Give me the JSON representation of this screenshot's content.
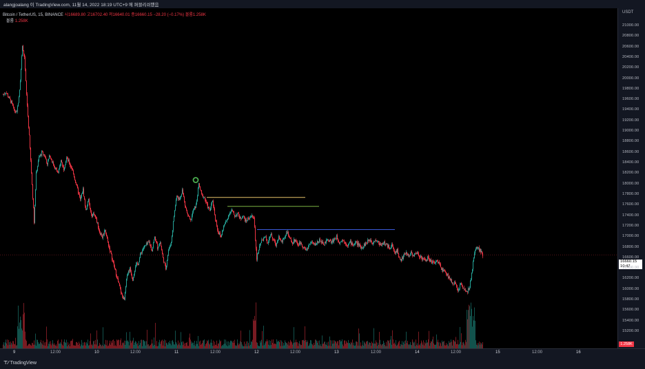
{
  "header": {
    "caption": "alangjoalang 이 TradingView.com, 11월 14, 2022 18:19 UTC+9 에 퍼블리쉬했음"
  },
  "legend": {
    "symbol": "Bitcoin / TetherUS, 15, BINANCE",
    "ohlc": "시16689.80  고16702.40  저16640.01  종16660.15  −28.20 (−0.17%)  볼륨1.258K",
    "volume_label": "볼륨",
    "volume_value": "1.258K"
  },
  "price_axis": {
    "unit": "USDT",
    "labels": [
      "21000.00",
      "20800.00",
      "20600.00",
      "20400.00",
      "20200.00",
      "20000.00",
      "19800.00",
      "19600.00",
      "19400.00",
      "19200.00",
      "19000.00",
      "18800.00",
      "18600.00",
      "18400.00",
      "18200.00",
      "18000.00",
      "17800.00",
      "17600.00",
      "17400.00",
      "17200.00",
      "17000.00",
      "16800.00",
      "16600.00",
      "16400.00",
      "16200.00",
      "16000.00",
      "15800.00",
      "15600.00",
      "15400.00",
      "15200.00"
    ],
    "current_price": "16660.15",
    "countdown": "10:47",
    "volume_badge": "1.258K"
  },
  "time_axis": {
    "labels": [
      "9",
      "12:00",
      "10",
      "12:00",
      "11",
      "12:00",
      "12",
      "12:00",
      "13",
      "12:00",
      "14",
      "12:00",
      "15",
      "12:00",
      "16"
    ]
  },
  "footer": {
    "brand": "TradingView"
  },
  "colors": {
    "up": "#26a69a",
    "down": "#f23645",
    "line_yellow": "#e8c36b",
    "line_green": "#7cb342",
    "line_blue": "#3b5bdb",
    "marker_green": "#4caf50"
  },
  "chart_data": {
    "type": "candlestick",
    "symbol": "BTC/USDT",
    "interval": "15",
    "x_range": [
      "9",
      "16"
    ],
    "ylim": [
      15200,
      21100
    ],
    "series": [
      {
        "values": [
          [
            0,
            19700
          ],
          [
            4,
            19750
          ],
          [
            8,
            19650
          ],
          [
            12,
            19550
          ],
          [
            16,
            19400
          ],
          [
            20,
            19350
          ],
          [
            24,
            19800
          ],
          [
            28,
            20600
          ],
          [
            31,
            20400
          ],
          [
            34,
            19700
          ],
          [
            38,
            18900
          ],
          [
            42,
            18000
          ],
          [
            45,
            17300
          ],
          [
            48,
            18200
          ],
          [
            52,
            18500
          ],
          [
            56,
            18600
          ],
          [
            60,
            18550
          ],
          [
            64,
            18400
          ],
          [
            68,
            18550
          ],
          [
            72,
            18400
          ],
          [
            76,
            18300
          ],
          [
            80,
            18200
          ],
          [
            84,
            18450
          ],
          [
            88,
            18300
          ],
          [
            92,
            18500
          ],
          [
            96,
            18400
          ],
          [
            100,
            18300
          ],
          [
            104,
            18100
          ],
          [
            108,
            17900
          ],
          [
            112,
            17700
          ],
          [
            116,
            17900
          ],
          [
            120,
            17500
          ],
          [
            124,
            17700
          ],
          [
            128,
            17400
          ],
          [
            132,
            17450
          ],
          [
            136,
            17300
          ],
          [
            140,
            17100
          ],
          [
            144,
            17000
          ],
          [
            148,
            17150
          ],
          [
            152,
            16900
          ],
          [
            156,
            16700
          ],
          [
            160,
            16500
          ],
          [
            164,
            16300
          ],
          [
            168,
            16100
          ],
          [
            172,
            15900
          ],
          [
            176,
            15800
          ],
          [
            180,
            16300
          ],
          [
            184,
            16400
          ],
          [
            188,
            16200
          ],
          [
            192,
            16450
          ],
          [
            196,
            16500
          ],
          [
            200,
            16700
          ],
          [
            204,
            16800
          ],
          [
            208,
            16850
          ],
          [
            212,
            16900
          ],
          [
            216,
            16750
          ],
          [
            220,
            17000
          ],
          [
            224,
            16800
          ],
          [
            228,
            16900
          ],
          [
            232,
            16600
          ],
          [
            236,
            16400
          ],
          [
            240,
            16750
          ],
          [
            244,
            16900
          ],
          [
            248,
            17400
          ],
          [
            252,
            17800
          ],
          [
            256,
            17700
          ],
          [
            260,
            17900
          ],
          [
            264,
            17600
          ],
          [
            268,
            17400
          ],
          [
            272,
            17300
          ],
          [
            276,
            17500
          ],
          [
            280,
            17600
          ],
          [
            284,
            18000
          ],
          [
            288,
            17800
          ],
          [
            292,
            17750
          ],
          [
            296,
            17600
          ],
          [
            300,
            17500
          ],
          [
            304,
            17700
          ],
          [
            308,
            17350
          ],
          [
            312,
            17100
          ],
          [
            316,
            17000
          ],
          [
            320,
            17200
          ],
          [
            324,
            17300
          ],
          [
            328,
            17450
          ],
          [
            332,
            17500
          ],
          [
            336,
            17400
          ],
          [
            340,
            17450
          ],
          [
            344,
            17350
          ],
          [
            348,
            17400
          ],
          [
            352,
            17300
          ],
          [
            356,
            17350
          ],
          [
            360,
            17400
          ],
          [
            364,
            17350
          ],
          [
            368,
            16600
          ],
          [
            372,
            16800
          ],
          [
            376,
            16950
          ],
          [
            380,
            17000
          ],
          [
            384,
            16900
          ],
          [
            388,
            17050
          ],
          [
            392,
            16950
          ],
          [
            396,
            16850
          ],
          [
            400,
            17000
          ],
          [
            404,
            16900
          ],
          [
            408,
            17000
          ],
          [
            412,
            17100
          ],
          [
            416,
            16950
          ],
          [
            420,
            16900
          ],
          [
            424,
            16950
          ],
          [
            428,
            16850
          ],
          [
            432,
            16900
          ],
          [
            436,
            16800
          ],
          [
            440,
            16750
          ],
          [
            444,
            16850
          ],
          [
            448,
            16900
          ],
          [
            452,
            16850
          ],
          [
            456,
            16900
          ],
          [
            460,
            16950
          ],
          [
            464,
            16850
          ],
          [
            468,
            16900
          ],
          [
            472,
            16950
          ],
          [
            476,
            16900
          ],
          [
            480,
            16950
          ],
          [
            484,
            17000
          ],
          [
            488,
            16900
          ],
          [
            492,
            16950
          ],
          [
            496,
            16900
          ],
          [
            500,
            16850
          ],
          [
            504,
            16900
          ],
          [
            508,
            16850
          ],
          [
            512,
            16900
          ],
          [
            516,
            16850
          ],
          [
            520,
            16800
          ],
          [
            524,
            16850
          ],
          [
            528,
            16900
          ],
          [
            532,
            16950
          ],
          [
            536,
            16900
          ],
          [
            540,
            16950
          ],
          [
            544,
            16900
          ],
          [
            548,
            16850
          ],
          [
            552,
            16900
          ],
          [
            556,
            16850
          ],
          [
            560,
            16800
          ],
          [
            564,
            16850
          ],
          [
            568,
            16700
          ],
          [
            572,
            16750
          ],
          [
            576,
            16550
          ],
          [
            580,
            16600
          ],
          [
            584,
            16700
          ],
          [
            588,
            16650
          ],
          [
            592,
            16700
          ],
          [
            596,
            16650
          ],
          [
            600,
            16700
          ],
          [
            604,
            16650
          ],
          [
            608,
            16600
          ],
          [
            612,
            16550
          ],
          [
            616,
            16600
          ],
          [
            620,
            16550
          ],
          [
            624,
            16500
          ],
          [
            628,
            16550
          ],
          [
            632,
            16500
          ],
          [
            636,
            16400
          ],
          [
            640,
            16350
          ],
          [
            644,
            16300
          ],
          [
            648,
            16200
          ],
          [
            652,
            16150
          ],
          [
            656,
            16100
          ],
          [
            660,
            16000
          ],
          [
            664,
            16100
          ],
          [
            668,
            16050
          ],
          [
            672,
            15950
          ],
          [
            676,
            16000
          ],
          [
            680,
            16300
          ],
          [
            684,
            16700
          ],
          [
            688,
            16800
          ],
          [
            692,
            16750
          ],
          [
            696,
            16660
          ]
        ]
      }
    ],
    "drawings": {
      "horizontal_lines": [
        {
          "color": "yellow",
          "price": 17750,
          "x0": 300,
          "x1": 443
        },
        {
          "color": "green",
          "price": 17580,
          "x0": 330,
          "x1": 463
        },
        {
          "color": "blue",
          "price": 17140,
          "x0": 373,
          "x1": 573
        }
      ],
      "circle_marker": {
        "x": 284,
        "price": 18080
      }
    }
  }
}
